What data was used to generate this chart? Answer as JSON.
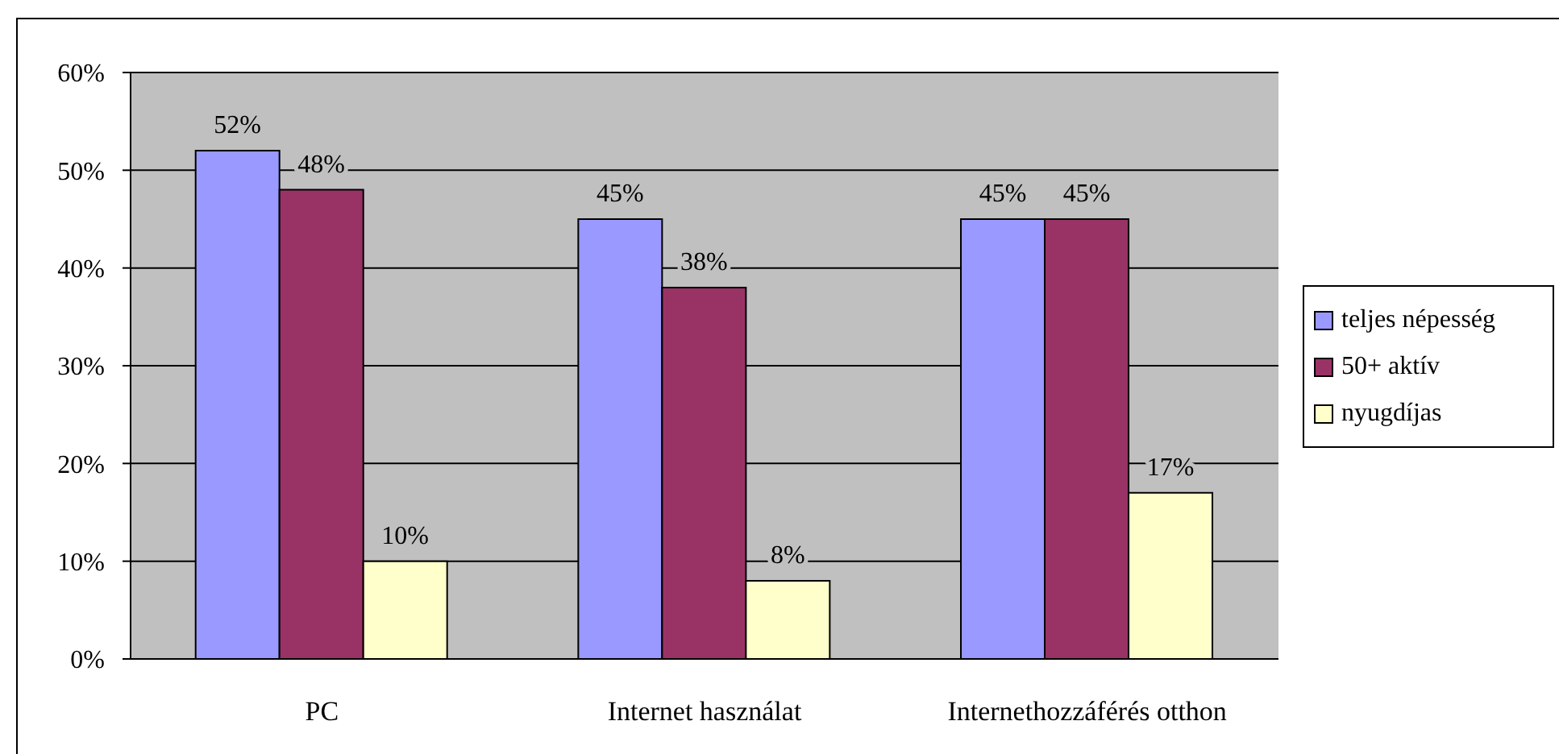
{
  "chart_data": {
    "type": "bar",
    "categories": [
      "PC",
      "Internet használat",
      "Internethozzáférés otthon"
    ],
    "series": [
      {
        "name": "teljes népesség",
        "color": "#9999ff",
        "values": [
          52,
          45,
          45
        ],
        "value_labels": [
          "52%",
          "45%",
          "45%"
        ]
      },
      {
        "name": "50+ aktív",
        "color": "#993366",
        "values": [
          48,
          38,
          45
        ],
        "value_labels": [
          "48%",
          "38%",
          "45%"
        ]
      },
      {
        "name": "nyugdíjas",
        "color": "#ffffcc",
        "values": [
          10,
          8,
          17
        ],
        "value_labels": [
          "10%",
          "8%",
          "17%"
        ]
      }
    ],
    "ylim": [
      0,
      60
    ],
    "yticks": [
      {
        "value": 0,
        "label": "0%"
      },
      {
        "value": 10,
        "label": "10%"
      },
      {
        "value": 20,
        "label": "20%"
      },
      {
        "value": 30,
        "label": "30%"
      },
      {
        "value": 40,
        "label": "40%"
      },
      {
        "value": 50,
        "label": "50%"
      },
      {
        "value": 60,
        "label": "60%"
      }
    ],
    "grid": "y",
    "legend": "right"
  }
}
